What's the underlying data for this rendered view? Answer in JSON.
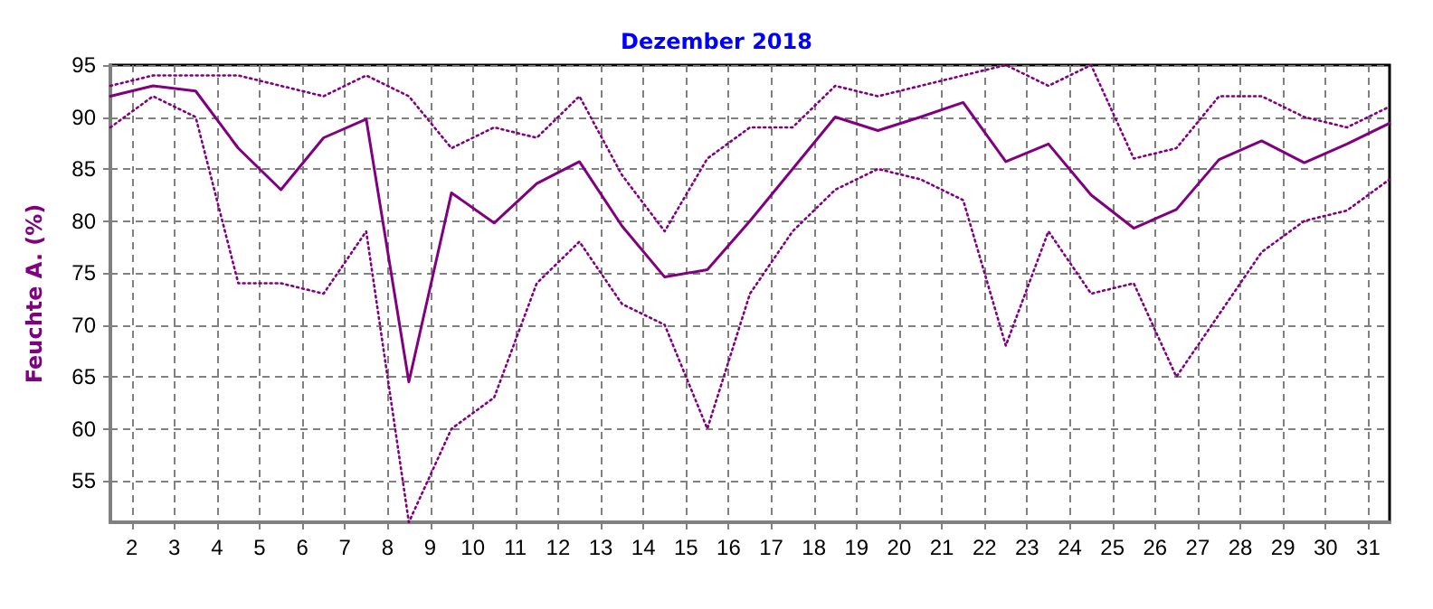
{
  "chart_data": {
    "type": "line",
    "title": "Dezember 2018",
    "ylabel": "Feuchte A. (%)",
    "x": [
      1.5,
      2.5,
      3.5,
      4.5,
      5.5,
      6.5,
      7.5,
      8.5,
      9.5,
      10.5,
      11.5,
      12.5,
      13.5,
      14.5,
      15.5,
      16.5,
      17.5,
      18.5,
      19.5,
      20.5,
      21.5,
      22.5,
      23.5,
      24.5,
      25.5,
      26.5,
      27.5,
      28.5,
      29.5,
      30.5,
      31.5
    ],
    "series": [
      {
        "color": "#800080",
        "line_style": "dotted",
        "values": [
          93,
          94,
          94,
          94,
          93,
          92,
          94,
          92,
          87,
          89,
          88,
          92,
          84.4,
          79,
          86,
          89,
          89,
          93,
          92,
          93,
          94,
          95,
          93,
          95,
          86,
          87,
          92,
          92,
          90,
          89,
          91
        ]
      },
      {
        "color": "#800080",
        "line_style": "solid",
        "values": [
          92,
          93,
          92.5,
          87,
          83,
          88,
          89.8,
          64.5,
          82.7,
          79.8,
          83.6,
          85.7,
          79.5,
          74.6,
          75.3,
          80,
          85,
          90,
          88.7,
          90,
          91.4,
          85.7,
          87.4,
          82.5,
          79.3,
          81.1,
          85.9,
          87.7,
          85.6,
          87.4,
          89.4
        ]
      },
      {
        "color": "#800080",
        "line_style": "dotted",
        "values": [
          89,
          92,
          90,
          74,
          74,
          73,
          79,
          51,
          60,
          63,
          74,
          78,
          72,
          70,
          60,
          73,
          79,
          83,
          85,
          84,
          82,
          68,
          79,
          73,
          74,
          65,
          71,
          77,
          80,
          81,
          84
        ]
      }
    ],
    "xlim": [
      1.5,
      31.5
    ],
    "xticks": [
      2,
      3,
      4,
      5,
      6,
      7,
      8,
      9,
      10,
      11,
      12,
      13,
      14,
      15,
      16,
      17,
      18,
      19,
      20,
      21,
      22,
      23,
      24,
      25,
      26,
      27,
      28,
      29,
      30,
      31
    ],
    "ylim": [
      51,
      95
    ],
    "yticks": [
      55,
      60,
      65,
      70,
      75,
      80,
      85,
      90,
      95
    ],
    "grid": true,
    "marker": "none"
  }
}
